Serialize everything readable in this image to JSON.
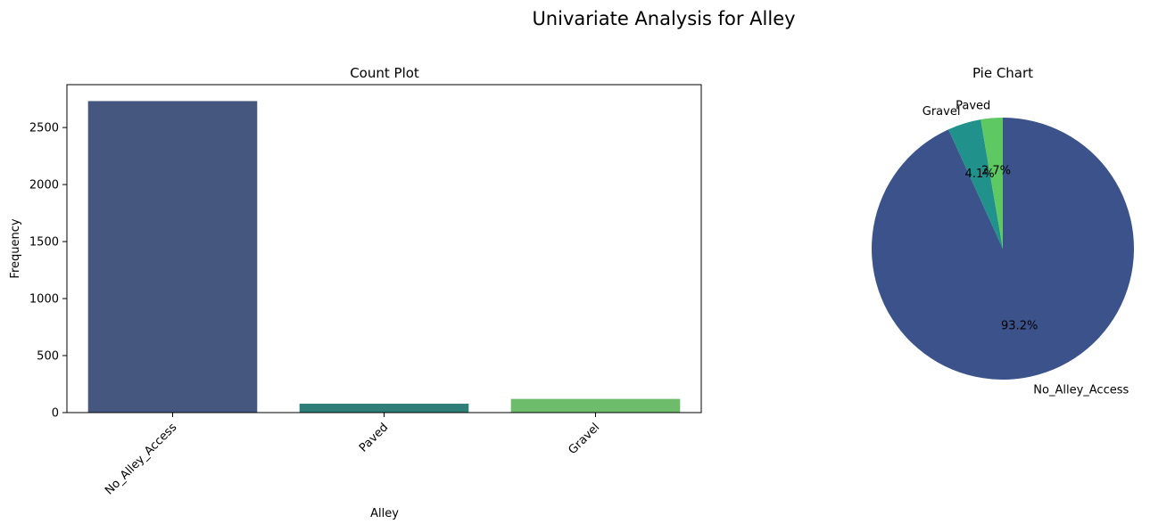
{
  "figure": {
    "title": "Univariate Analysis for Alley"
  },
  "chart_data": [
    {
      "type": "bar",
      "title": "Count Plot",
      "xlabel": "Alley",
      "ylabel": "Frequency",
      "categories": [
        "No_Alley_Access",
        "Paved",
        "Gravel"
      ],
      "values": [
        2732,
        78,
        120
      ],
      "colors": [
        "#46577f",
        "#2e7f78",
        "#6cbc6b"
      ],
      "ylim": [
        0,
        2876
      ],
      "yticks": [
        0,
        500,
        1000,
        1500,
        2000,
        2500
      ],
      "xtick_rotation": 45,
      "grid": false,
      "legend": "none"
    },
    {
      "type": "pie",
      "title": "Pie Chart",
      "labels": [
        "No_Alley_Access",
        "Gravel",
        "Paved"
      ],
      "values": [
        93.2,
        4.1,
        2.7
      ],
      "autopct_labels": [
        "93.2%",
        "4.1%",
        "2.7%"
      ],
      "colors": [
        "#3b528b",
        "#21918c",
        "#5ec962"
      ],
      "legend": "none"
    }
  ]
}
